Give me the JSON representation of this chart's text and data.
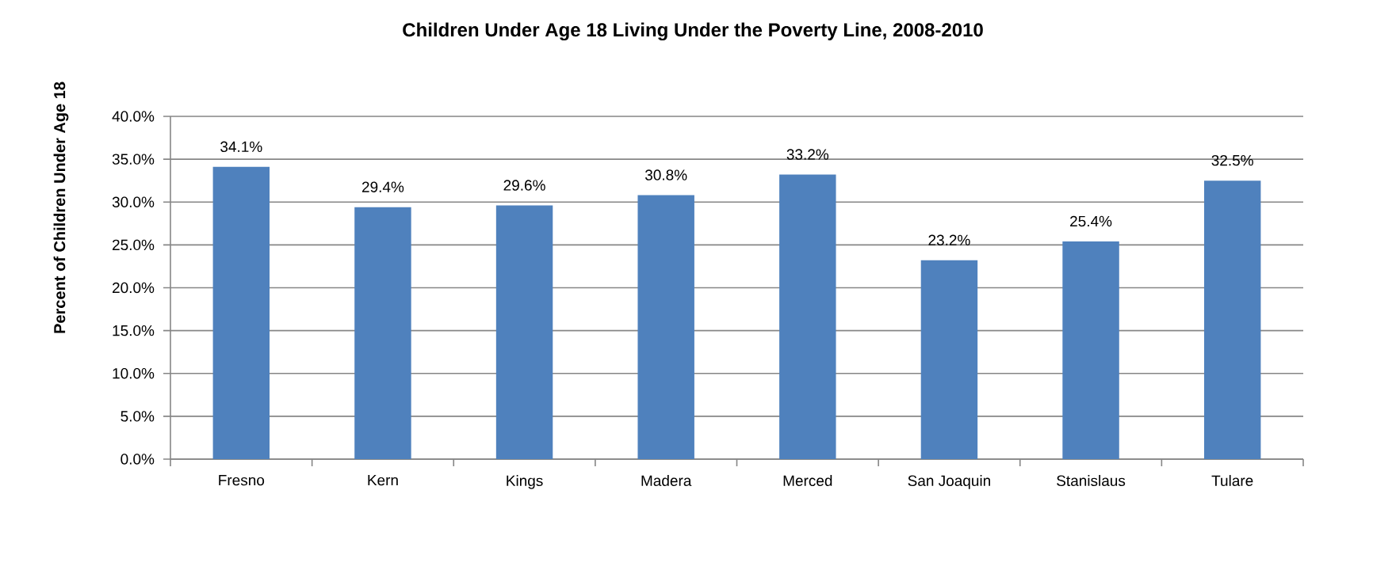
{
  "chart_data": {
    "type": "bar",
    "title": "Children Under Age 18 Living Under the Poverty Line, 2008-2010",
    "ylabel": "Percent of Children Under Age 18",
    "categories": [
      "Fresno",
      "Kern",
      "Kings",
      "Madera",
      "Merced",
      "San Joaquin",
      "Stanislaus",
      "Tulare"
    ],
    "values": [
      34.1,
      29.4,
      29.6,
      30.8,
      33.2,
      23.2,
      25.4,
      32.5
    ],
    "value_labels": [
      "34.1%",
      "29.4%",
      "29.6%",
      "30.8%",
      "33.2%",
      "23.2%",
      "25.4%",
      "32.5%"
    ],
    "color": "#4f81bd",
    "ylim": [
      0,
      40
    ],
    "yticks": [
      {
        "value": 0,
        "label": "0.0%"
      },
      {
        "value": 5,
        "label": "5.0%"
      },
      {
        "value": 10,
        "label": "10.0%"
      },
      {
        "value": 15,
        "label": "15.0%"
      },
      {
        "value": 20,
        "label": "20.0%"
      },
      {
        "value": 25,
        "label": "25.0%"
      },
      {
        "value": 30,
        "label": "30.0%"
      },
      {
        "value": 35,
        "label": "35.0%"
      },
      {
        "value": 40,
        "label": "40.0%"
      }
    ],
    "grid": "y"
  }
}
